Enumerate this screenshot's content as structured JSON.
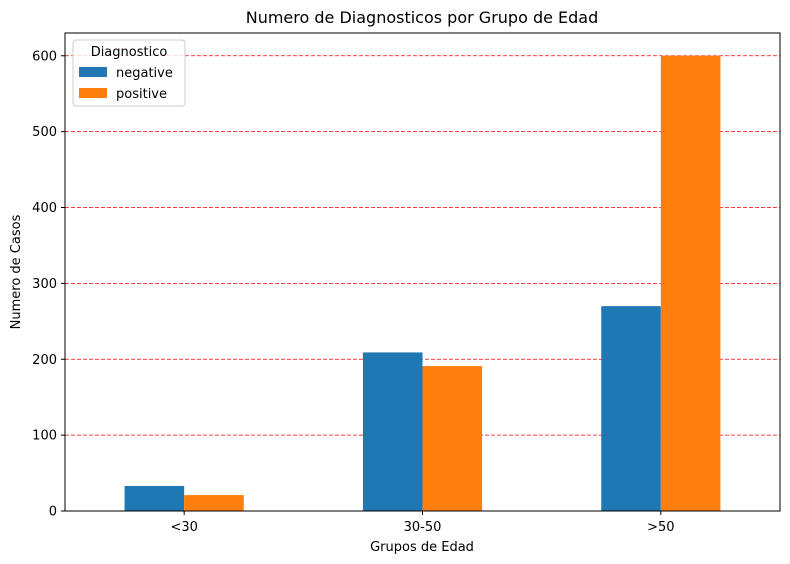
{
  "chart_data": {
    "type": "bar",
    "title": "Numero de Diagnosticos por Grupo de Edad",
    "xlabel": "Grupos de Edad",
    "ylabel": "Numero de Casos",
    "categories": [
      "<30",
      "30-50",
      ">50"
    ],
    "series": [
      {
        "name": "negative",
        "values": [
          33,
          209,
          270
        ],
        "color": "#1f77b4"
      },
      {
        "name": "positive",
        "values": [
          21,
          191,
          600
        ],
        "color": "#ff7f0e"
      }
    ],
    "ylim": [
      0,
      630
    ],
    "yticks": [
      0,
      100,
      200,
      300,
      400,
      500,
      600
    ],
    "legend": {
      "title": "Diagnostico",
      "position": "top-left"
    },
    "grid": {
      "axis": "y",
      "style": "dashed",
      "color": "#ff0000"
    }
  }
}
